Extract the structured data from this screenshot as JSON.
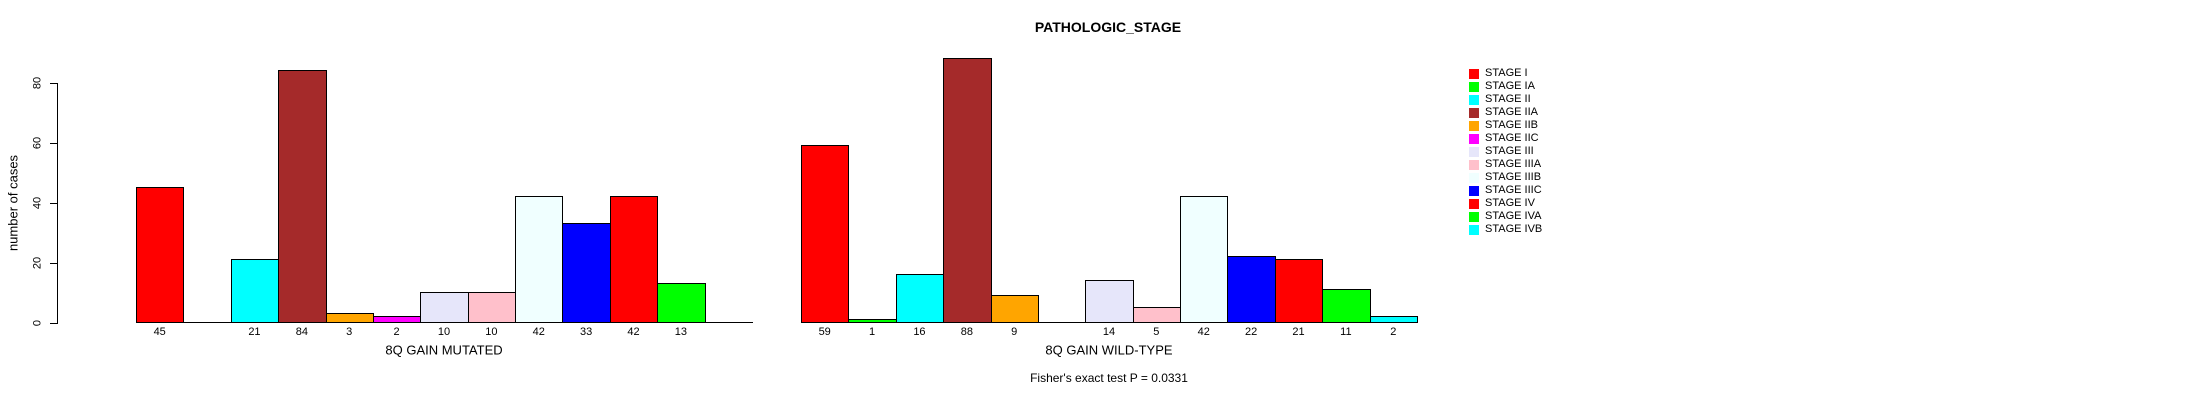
{
  "title": "PATHOLOGIC_STAGE",
  "chart_data": {
    "type": "bar",
    "title": "PATHOLOGIC_STAGE",
    "ylabel": "number of cases",
    "ylim": [
      0,
      80
    ],
    "yticks": [
      0,
      20,
      40,
      60,
      80
    ],
    "grid": false,
    "legend_position": "right",
    "categories": [
      "STAGE I",
      "STAGE IA",
      "STAGE II",
      "STAGE IIA",
      "STAGE IIB",
      "STAGE IIC",
      "STAGE III",
      "STAGE IIIA",
      "STAGE IIIB",
      "STAGE IIIC",
      "STAGE IV",
      "STAGE IVA",
      "STAGE IVB"
    ],
    "colors": [
      "#FF0000",
      "#00FF00",
      "#00FFFF",
      "#A52A2A",
      "#FFA500",
      "#FF00FF",
      "#E6E6FA",
      "#FFC0CB",
      "#F0FFFF",
      "#0000FF",
      "#FF0000",
      "#00FF00",
      "#00FFFF"
    ],
    "panels": [
      {
        "xlabel": "8Q GAIN MUTATED",
        "values": [
          45,
          0,
          21,
          84,
          3,
          2,
          10,
          10,
          42,
          33,
          42,
          13,
          0
        ]
      },
      {
        "xlabel": "8Q GAIN WILD-TYPE",
        "values": [
          59,
          1,
          16,
          88,
          9,
          0,
          14,
          5,
          42,
          22,
          21,
          11,
          2
        ]
      }
    ],
    "annotation": "Fisher's exact test P = 0.0331"
  }
}
